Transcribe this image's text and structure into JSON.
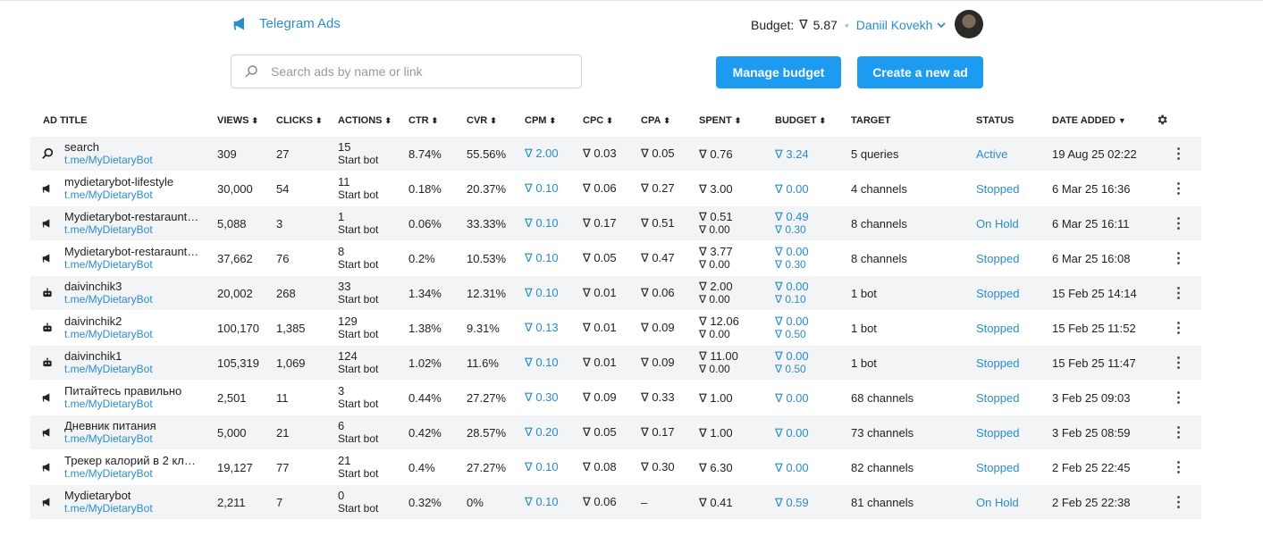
{
  "header": {
    "brand": "Telegram Ads",
    "budget_label": "Budget:",
    "budget_value": "5.87",
    "user_name": "Daniil Kovekh"
  },
  "search": {
    "placeholder": "Search ads by name or link",
    "value": ""
  },
  "actions": {
    "manage_budget": "Manage budget",
    "create_ad": "Create a new ad"
  },
  "colors": {
    "accent": "#1d9bf0",
    "link": "#2a8ccb",
    "row_stripe": "#f2f4f6"
  },
  "columns": [
    "AD TITLE",
    "VIEWS",
    "CLICKS",
    "ACTIONS",
    "CTR",
    "CVR",
    "CPM",
    "CPC",
    "CPA",
    "SPENT",
    "BUDGET",
    "TARGET",
    "STATUS",
    "DATE ADDED"
  ],
  "rows": [
    {
      "icon": "search-icon",
      "title": "search",
      "link": "t.me/MyDietaryBot",
      "views": "309",
      "clicks": "27",
      "actions": "15",
      "action_type": "Start bot",
      "ctr": "8.74%",
      "cvr": "55.56%",
      "cpm": "2.00",
      "cpc": "0.03",
      "cpa": "0.05",
      "spent": "0.76",
      "spent2": "",
      "budget": "3.24",
      "budget2": "",
      "target": "5 queries",
      "status": "Active",
      "date": "19 Aug 25 02:22"
    },
    {
      "icon": "megaphone-icon",
      "title": "mydietarybot-lifestyle",
      "link": "t.me/MyDietaryBot",
      "views": "30,000",
      "clicks": "54",
      "actions": "11",
      "action_type": "Start bot",
      "ctr": "0.18%",
      "cvr": "20.37%",
      "cpm": "0.10",
      "cpc": "0.06",
      "cpa": "0.27",
      "spent": "3.00",
      "spent2": "",
      "budget": "0.00",
      "budget2": "",
      "target": "4 channels",
      "status": "Stopped",
      "date": "6 Mar 25 16:36"
    },
    {
      "icon": "megaphone-icon",
      "title": "Mydietarybot-restaraunt…",
      "link": "t.me/MyDietaryBot",
      "views": "5,088",
      "clicks": "3",
      "actions": "1",
      "action_type": "Start bot",
      "ctr": "0.06%",
      "cvr": "33.33%",
      "cpm": "0.10",
      "cpc": "0.17",
      "cpa": "0.51",
      "spent": "0.51",
      "spent2": "0.00",
      "budget": "0.49",
      "budget2": "0.30",
      "target": "8 channels",
      "status": "On Hold",
      "date": "6 Mar 25 16:11"
    },
    {
      "icon": "megaphone-icon",
      "title": "Mydietarybot-restaraunt…",
      "link": "t.me/MyDietaryBot",
      "views": "37,662",
      "clicks": "76",
      "actions": "8",
      "action_type": "Start bot",
      "ctr": "0.2%",
      "cvr": "10.53%",
      "cpm": "0.10",
      "cpc": "0.05",
      "cpa": "0.47",
      "spent": "3.77",
      "spent2": "0.00",
      "budget": "0.00",
      "budget2": "0.30",
      "target": "8 channels",
      "status": "Stopped",
      "date": "6 Mar 25 16:08"
    },
    {
      "icon": "bot-icon",
      "title": "daivinchik3",
      "link": "t.me/MyDietaryBot",
      "views": "20,002",
      "clicks": "268",
      "actions": "33",
      "action_type": "Start bot",
      "ctr": "1.34%",
      "cvr": "12.31%",
      "cpm": "0.10",
      "cpc": "0.01",
      "cpa": "0.06",
      "spent": "2.00",
      "spent2": "0.00",
      "budget": "0.00",
      "budget2": "0.10",
      "target": "1 bot",
      "status": "Stopped",
      "date": "15 Feb 25 14:14"
    },
    {
      "icon": "bot-icon",
      "title": "daivinchik2",
      "link": "t.me/MyDietaryBot",
      "views": "100,170",
      "clicks": "1,385",
      "actions": "129",
      "action_type": "Start bot",
      "ctr": "1.38%",
      "cvr": "9.31%",
      "cpm": "0.13",
      "cpc": "0.01",
      "cpa": "0.09",
      "spent": "12.06",
      "spent2": "0.00",
      "budget": "0.00",
      "budget2": "0.50",
      "target": "1 bot",
      "status": "Stopped",
      "date": "15 Feb 25 11:52"
    },
    {
      "icon": "bot-icon",
      "title": "daivinchik1",
      "link": "t.me/MyDietaryBot",
      "views": "105,319",
      "clicks": "1,069",
      "actions": "124",
      "action_type": "Start bot",
      "ctr": "1.02%",
      "cvr": "11.6%",
      "cpm": "0.10",
      "cpc": "0.01",
      "cpa": "0.09",
      "spent": "11.00",
      "spent2": "0.00",
      "budget": "0.00",
      "budget2": "0.50",
      "target": "1 bot",
      "status": "Stopped",
      "date": "15 Feb 25 11:47"
    },
    {
      "icon": "megaphone-icon",
      "title": "Питайтесь правильно",
      "link": "t.me/MyDietaryBot",
      "views": "2,501",
      "clicks": "11",
      "actions": "3",
      "action_type": "Start bot",
      "ctr": "0.44%",
      "cvr": "27.27%",
      "cpm": "0.30",
      "cpc": "0.09",
      "cpa": "0.33",
      "spent": "1.00",
      "spent2": "",
      "budget": "0.00",
      "budget2": "",
      "target": "68 channels",
      "status": "Stopped",
      "date": "3 Feb 25 09:03"
    },
    {
      "icon": "megaphone-icon",
      "title": "Дневник питания",
      "link": "t.me/MyDietaryBot",
      "views": "5,000",
      "clicks": "21",
      "actions": "6",
      "action_type": "Start bot",
      "ctr": "0.42%",
      "cvr": "28.57%",
      "cpm": "0.20",
      "cpc": "0.05",
      "cpa": "0.17",
      "spent": "1.00",
      "spent2": "",
      "budget": "0.00",
      "budget2": "",
      "target": "73 channels",
      "status": "Stopped",
      "date": "3 Feb 25 08:59"
    },
    {
      "icon": "megaphone-icon",
      "title": "Трекер калорий в 2 кл…",
      "link": "t.me/MyDietaryBot",
      "views": "19,127",
      "clicks": "77",
      "actions": "21",
      "action_type": "Start bot",
      "ctr": "0.4%",
      "cvr": "27.27%",
      "cpm": "0.10",
      "cpc": "0.08",
      "cpa": "0.30",
      "spent": "6.30",
      "spent2": "",
      "budget": "0.00",
      "budget2": "",
      "target": "82 channels",
      "status": "Stopped",
      "date": "2 Feb 25 22:45"
    },
    {
      "icon": "megaphone-icon",
      "title": "Mydietarybot",
      "link": "t.me/MyDietaryBot",
      "views": "2,211",
      "clicks": "7",
      "actions": "0",
      "action_type": "Start bot",
      "ctr": "0.32%",
      "cvr": "0%",
      "cpm": "0.10",
      "cpc": "0.06",
      "cpa": "–",
      "spent": "0.41",
      "spent2": "",
      "budget": "0.59",
      "budget2": "",
      "target": "81 channels",
      "status": "On Hold",
      "date": "2 Feb 25 22:38"
    }
  ]
}
